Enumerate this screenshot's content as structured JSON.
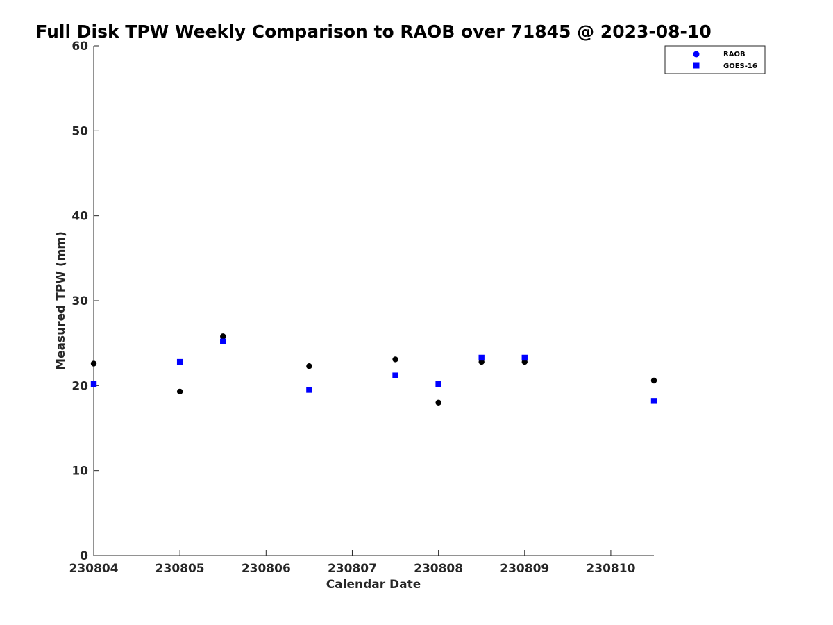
{
  "chart_data": {
    "type": "scatter",
    "title": "Full Disk TPW Weekly Comparison to RAOB over 71845 @ 2023-08-10",
    "xlabel": "Calendar Date",
    "ylabel": "Measured TPW (mm)",
    "xlim": [
      230804,
      230810.5
    ],
    "ylim": [
      0,
      60
    ],
    "x_ticks": [
      230804,
      230805,
      230806,
      230807,
      230808,
      230809,
      230810
    ],
    "x_tick_labels": [
      "230804",
      "230805",
      "230806",
      "230807",
      "230808",
      "230809",
      "230810"
    ],
    "y_ticks": [
      0,
      10,
      20,
      30,
      40,
      50,
      60
    ],
    "y_tick_labels": [
      "0",
      "10",
      "20",
      "30",
      "40",
      "50",
      "60"
    ],
    "grid": false,
    "legend": {
      "placement": "top-right",
      "entries": [
        "RAOB",
        "GOES-16"
      ]
    },
    "series": [
      {
        "name": "RAOB",
        "marker": "circle",
        "color": "#000000",
        "legend_color": "#0000ff",
        "x": [
          230804.0,
          230805.0,
          230805.5,
          230806.5,
          230807.5,
          230808.0,
          230808.5,
          230809.0,
          230810.5
        ],
        "y": [
          22.6,
          19.3,
          25.8,
          22.3,
          23.1,
          18.0,
          22.8,
          22.8,
          20.6
        ]
      },
      {
        "name": "GOES-16",
        "marker": "square",
        "color": "#0000ff",
        "legend_color": "#0000ff",
        "x": [
          230804.0,
          230805.0,
          230805.5,
          230806.5,
          230807.5,
          230808.0,
          230808.5,
          230809.0,
          230810.5
        ],
        "y": [
          20.2,
          22.8,
          25.2,
          19.5,
          21.2,
          20.2,
          23.3,
          23.3,
          18.2
        ]
      }
    ]
  }
}
